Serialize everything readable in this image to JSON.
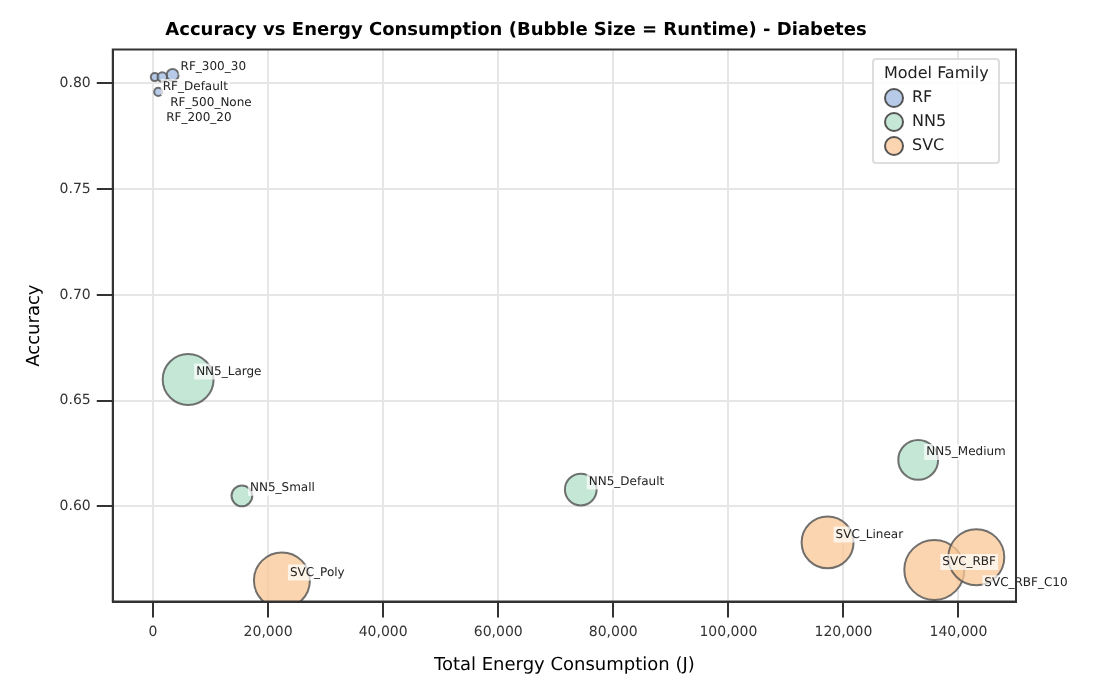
{
  "chart_data": {
    "type": "bubble",
    "title": "Accuracy vs Energy Consumption (Bubble Size = Runtime) - Diabetes",
    "xlabel": "Total Energy Consumption (J)",
    "ylabel": "Accuracy",
    "legend_title": "Model Family",
    "series": [
      {
        "name": "RF",
        "color": "#9fb8e0",
        "x": [
          3400,
          300,
          1600,
          900
        ],
        "values": [
          0.804,
          0.803,
          0.803,
          0.796
        ],
        "sizes": [
          0.04,
          0.018,
          0.025,
          0.018
        ]
      },
      {
        "name": "NN5",
        "color": "#b2dfc8",
        "x": [
          6100,
          15450,
          74350,
          133000
        ],
        "values": [
          0.66,
          0.605,
          0.608,
          0.622
        ],
        "sizes": [
          0.72,
          0.12,
          0.28,
          0.44
        ]
      },
      {
        "name": "SVC",
        "color": "#f8c796",
        "x": [
          22400,
          117250,
          135800,
          143100
        ],
        "values": [
          0.565,
          0.583,
          0.57,
          0.576
        ],
        "sizes": [
          0.87,
          0.75,
          1,
          0.87
        ]
      }
    ],
    "annotations": [
      {
        "text": "RF_300_30",
        "x": 3400,
        "y": 0.804
      },
      {
        "text": "RF_Default",
        "x": 300,
        "y": 0.803
      },
      {
        "text": "RF_500_None",
        "x": 1600,
        "y": 0.803
      },
      {
        "text": "RF_200_20",
        "x": 900,
        "y": 0.796
      },
      {
        "text": "NN5_Large",
        "x": 6100,
        "y": 0.66
      },
      {
        "text": "NN5_Small",
        "x": 15450,
        "y": 0.605
      },
      {
        "text": "NN5_Default",
        "x": 74350,
        "y": 0.608
      },
      {
        "text": "NN5_Medium",
        "x": 133000,
        "y": 0.622
      },
      {
        "text": "SVC_Poly",
        "x": 22400,
        "y": 0.565
      },
      {
        "text": "SVC_Linear",
        "x": 117250,
        "y": 0.583
      },
      {
        "text": "SVC_RBF",
        "x": 135800,
        "y": 0.57
      },
      {
        "text": "SVC_RBF_C10",
        "x": 143100,
        "y": 0.576
      }
    ],
    "xlim": [
      -7000,
      150000
    ],
    "xticks": [
      0,
      {
        "value": 20000,
        "label": "20,000"
      },
      {
        "value": 40000,
        "label": "40,000"
      },
      {
        "value": 60000,
        "label": "60,000"
      },
      {
        "value": 80000,
        "label": "80,000"
      },
      {
        "value": 100000,
        "label": "100,000"
      },
      {
        "value": 120000,
        "label": "120,000"
      },
      {
        "value": 140000,
        "label": "140,000"
      }
    ],
    "ylim": [
      0.555,
      0.816
    ],
    "yticks": [
      {
        "value": 0.6,
        "label": "0.60"
      },
      {
        "value": 0.65,
        "label": "0.65"
      },
      {
        "value": 0.7,
        "label": "0.70"
      },
      {
        "value": 0.75,
        "label": "0.75"
      },
      {
        "value": 0.8,
        "label": "0.80"
      }
    ],
    "grid": true,
    "legend": "top right"
  }
}
